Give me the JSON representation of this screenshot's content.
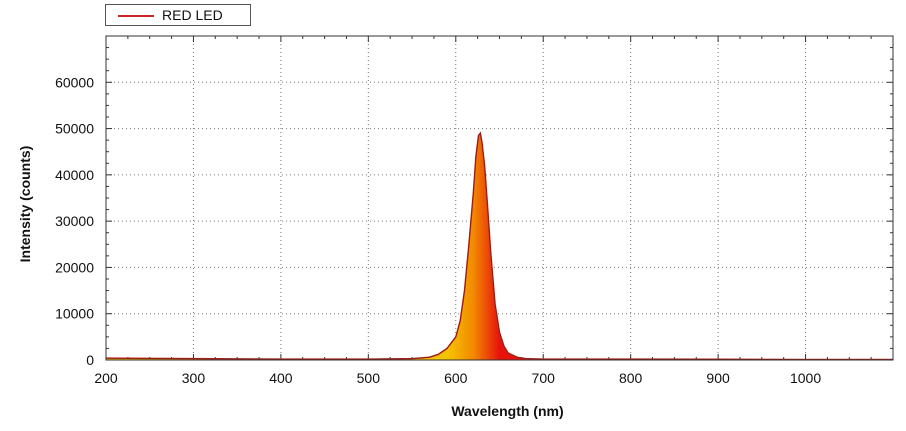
{
  "chart_data": {
    "type": "area",
    "title": "",
    "xlabel": "Wavelength (nm)",
    "ylabel": "Intensity (counts)",
    "xlim": [
      200,
      1100
    ],
    "ylim": [
      0,
      70000
    ],
    "x_ticks": [
      200,
      300,
      400,
      500,
      600,
      700,
      800,
      900,
      1000
    ],
    "y_ticks": [
      0,
      10000,
      20000,
      30000,
      40000,
      50000,
      60000
    ],
    "grid": true,
    "legend": {
      "position": "top-left",
      "entries": [
        "RED LED"
      ]
    },
    "series": [
      {
        "name": "RED LED",
        "color": "#c62828",
        "fill_gradient": [
          "#f5c400",
          "#f28a00",
          "#e8120c"
        ],
        "x": [
          200,
          300,
          400,
          500,
          550,
          570,
          580,
          590,
          600,
          605,
          610,
          615,
          620,
          623,
          626,
          628,
          630,
          633,
          636,
          640,
          645,
          650,
          655,
          660,
          670,
          680,
          700,
          800,
          900,
          1000,
          1100
        ],
        "y": [
          400,
          300,
          200,
          200,
          300,
          600,
          1200,
          2500,
          5000,
          8500,
          15000,
          25000,
          36000,
          44000,
          48500,
          49000,
          47000,
          42000,
          34000,
          23000,
          12000,
          6000,
          3000,
          1500,
          600,
          300,
          200,
          200,
          150,
          100,
          100
        ]
      }
    ]
  }
}
